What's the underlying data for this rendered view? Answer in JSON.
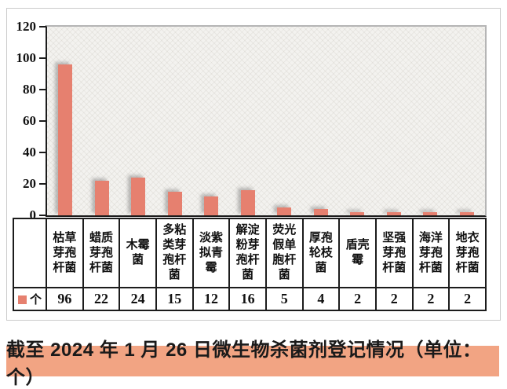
{
  "chart_data": {
    "type": "bar",
    "title": "",
    "xlabel": "",
    "ylabel": "",
    "categories": [
      "枯草芽孢杆菌",
      "蜡质芽孢杆菌",
      "木霉菌",
      "多粘类芽孢杆菌",
      "淡紫拟青霉",
      "解淀粉芽孢杆菌",
      "荧光假单胞杆菌",
      "厚孢轮枝菌",
      "盾壳霉",
      "坚强芽孢杆菌",
      "海洋芽孢杆菌",
      "地衣芽孢杆菌"
    ],
    "values": [
      96,
      22,
      24,
      15,
      12,
      16,
      5,
      4,
      2,
      2,
      2,
      2
    ],
    "legend_label": "个",
    "yticks": [
      0,
      20,
      40,
      60,
      80,
      100,
      120
    ],
    "ylim": [
      0,
      120
    ],
    "grid": false,
    "legend_position": "table-left",
    "bar_color": "#E6806F",
    "axis_color": "#1c1c1c"
  },
  "caption": {
    "text": "截至 2024 年 1 月 26 日微生物杀菌剂登记情况（单位：个）",
    "bg_color": "#F2A483"
  }
}
